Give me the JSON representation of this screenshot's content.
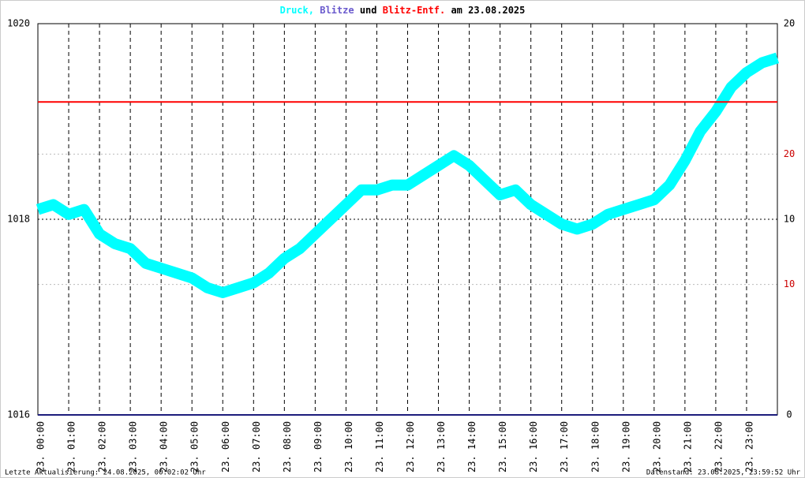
{
  "chart_data": {
    "type": "line",
    "title": [
      {
        "text": "Druck,",
        "color": "#00ffff"
      },
      {
        "text": "Blitze",
        "color": "#6a5acd"
      },
      {
        "text": "und",
        "color": "#000000"
      },
      {
        "text": "Blitz-Entf.",
        "color": "#ff0000"
      },
      {
        "text": "am 23.08.2025",
        "color": "#000000"
      }
    ],
    "footer_left": "Letzte Aktualisierung: 24.08.2025, 00:02:02 Uhr",
    "footer_right": "Datenstand: 23.08.2025, 23:59:52 Uhr",
    "xlim": [
      0,
      24
    ],
    "xticks": [
      {
        "value": 0,
        "label": "23. 00:00"
      },
      {
        "value": 1,
        "label": "23. 01:00"
      },
      {
        "value": 2,
        "label": "23. 02:00"
      },
      {
        "value": 3,
        "label": "23. 03:00"
      },
      {
        "value": 4,
        "label": "23. 04:00"
      },
      {
        "value": 5,
        "label": "23. 05:00"
      },
      {
        "value": 6,
        "label": "23. 06:00"
      },
      {
        "value": 7,
        "label": "23. 07:00"
      },
      {
        "value": 8,
        "label": "23. 08:00"
      },
      {
        "value": 9,
        "label": "23. 09:00"
      },
      {
        "value": 10,
        "label": "23. 10:00"
      },
      {
        "value": 11,
        "label": "23. 11:00"
      },
      {
        "value": 12,
        "label": "23. 12:00"
      },
      {
        "value": 13,
        "label": "23. 13:00"
      },
      {
        "value": 14,
        "label": "23. 14:00"
      },
      {
        "value": 15,
        "label": "23. 15:00"
      },
      {
        "value": 16,
        "label": "23. 16:00"
      },
      {
        "value": 17,
        "label": "23. 17:00"
      },
      {
        "value": 18,
        "label": "23. 18:00"
      },
      {
        "value": 19,
        "label": "23. 19:00"
      },
      {
        "value": 20,
        "label": "23. 20:00"
      },
      {
        "value": 21,
        "label": "23. 21:00"
      },
      {
        "value": 22,
        "label": "23. 22:00"
      },
      {
        "value": 23,
        "label": "23. 23:00"
      }
    ],
    "ylim": [
      1016,
      1020
    ],
    "yticks": [
      1016,
      1018,
      1020
    ],
    "y2lim": [
      0,
      20
    ],
    "y2ticks": [
      0,
      10,
      20
    ],
    "y3lim": [
      0,
      30
    ],
    "y3ticks": [
      10,
      20
    ],
    "grid": true,
    "series": [
      {
        "color": "#00ffff",
        "x": [
          0,
          0.5,
          1,
          1.5,
          2,
          2.5,
          3,
          3.5,
          4,
          4.5,
          5,
          5.5,
          6,
          6.5,
          7,
          7.5,
          8,
          8.5,
          9,
          9.5,
          10,
          10.5,
          11,
          11.5,
          12,
          12.5,
          13,
          13.5,
          14,
          14.5,
          15,
          15.5,
          16,
          16.5,
          17,
          17.5,
          18,
          18.5,
          19,
          19.5,
          20,
          20.5,
          21,
          21.5,
          22,
          22.5,
          23,
          23.5,
          24
        ],
        "values": [
          1018.1,
          1018.15,
          1018.05,
          1018.1,
          1017.85,
          1017.75,
          1017.7,
          1017.55,
          1017.5,
          1017.45,
          1017.4,
          1017.3,
          1017.25,
          1017.3,
          1017.35,
          1017.45,
          1017.6,
          1017.7,
          1017.85,
          1018.0,
          1018.15,
          1018.3,
          1018.3,
          1018.35,
          1018.35,
          1018.45,
          1018.55,
          1018.65,
          1018.55,
          1018.4,
          1018.25,
          1018.3,
          1018.15,
          1018.05,
          1017.95,
          1017.9,
          1017.95,
          1018.05,
          1018.1,
          1018.15,
          1018.2,
          1018.35,
          1018.6,
          1018.9,
          1019.1,
          1019.35,
          1019.5,
          1019.6,
          1019.65
        ]
      },
      {
        "color": "#1c1c7c",
        "axis": "y2",
        "x": [
          0,
          24
        ],
        "values": [
          0,
          0
        ]
      },
      {
        "color": "#ff0000",
        "axis": "y3",
        "x": [
          0,
          24
        ],
        "values": [
          24,
          24
        ]
      }
    ]
  }
}
